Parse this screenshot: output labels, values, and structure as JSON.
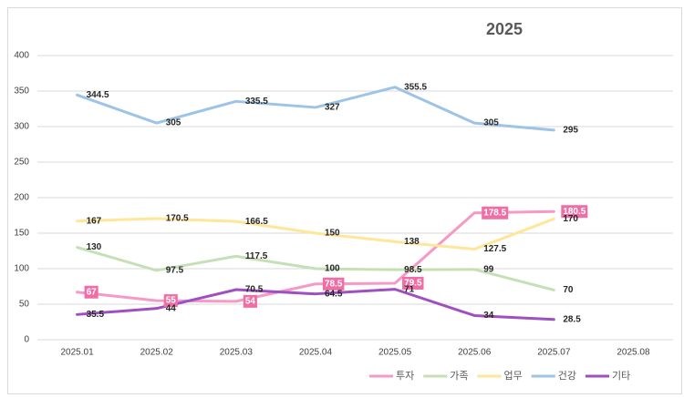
{
  "chart_data": {
    "type": "line",
    "title": "2025",
    "categories": [
      "2025.01",
      "2025.02",
      "2025.03",
      "2025.04",
      "2025.05",
      "2025.06",
      "2025.07",
      "2025.08"
    ],
    "series": [
      {
        "name": "투자",
        "color": "#f799c6",
        "values": [
          67,
          55,
          54,
          78.5,
          79.5,
          178.5,
          180.5,
          null
        ]
      },
      {
        "name": "가족",
        "color": "#c5e0b4",
        "values": [
          130,
          97.5,
          117.5,
          100,
          98.5,
          99,
          70,
          null
        ]
      },
      {
        "name": "업무",
        "color": "#ffe699",
        "values": [
          167,
          170.5,
          166.5,
          150,
          138,
          127.5,
          170,
          null
        ]
      },
      {
        "name": "건강",
        "color": "#9dc3e6",
        "values": [
          344.5,
          305,
          335.5,
          327,
          355.5,
          305,
          295,
          null
        ]
      },
      {
        "name": "기타",
        "color": "#9e4fc4",
        "values": [
          35.5,
          44,
          70.5,
          64.5,
          71,
          34,
          28.5,
          null
        ]
      }
    ],
    "ylim": [
      0,
      400
    ],
    "yticks": [
      0,
      50,
      100,
      150,
      200,
      250,
      300,
      350,
      400
    ],
    "grid": true,
    "legend": "bottom"
  }
}
